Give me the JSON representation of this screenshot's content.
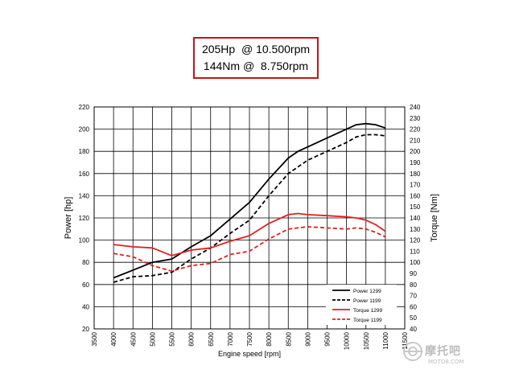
{
  "headline": {
    "power_text": "205Hp  @ 10.500rpm",
    "torque_text": "144Nm @  8.750rpm",
    "border_color": "#c81414"
  },
  "chart_data": {
    "type": "line",
    "title": "",
    "xlabel": "Engine speed [rpm]",
    "ylabel": "Power [hp]",
    "y2label": "Torque [Nm]",
    "xlim": [
      3500,
      11500
    ],
    "ylim": [
      20,
      220
    ],
    "y2lim": [
      40,
      240
    ],
    "x_ticks": [
      3500,
      4000,
      4500,
      5000,
      5500,
      6000,
      6500,
      7000,
      7500,
      8000,
      8500,
      9000,
      9500,
      10000,
      10500,
      11000,
      11500
    ],
    "y_ticks": [
      20,
      40,
      60,
      80,
      100,
      120,
      140,
      160,
      180,
      200,
      220
    ],
    "y2_ticks": [
      40,
      50,
      60,
      70,
      80,
      90,
      100,
      110,
      120,
      130,
      140,
      150,
      160,
      170,
      180,
      190,
      200,
      210,
      220,
      230,
      240
    ],
    "grid": true,
    "legend_position": "bottom-right",
    "series": [
      {
        "name": "Power 1299",
        "axis": "left",
        "color": "#000000",
        "dashed": false,
        "x": [
          4000,
          4500,
          5000,
          5500,
          6000,
          6500,
          7000,
          7500,
          8000,
          8500,
          8750,
          9000,
          9500,
          10000,
          10250,
          10500,
          10750,
          11000
        ],
        "y": [
          66,
          73,
          80,
          83,
          94,
          104,
          119,
          134,
          155,
          174,
          180,
          184,
          192,
          200,
          204,
          205,
          204,
          201
        ]
      },
      {
        "name": "Power 1199",
        "axis": "left",
        "color": "#000000",
        "dashed": true,
        "x": [
          4000,
          4500,
          5000,
          5500,
          6000,
          6500,
          7000,
          7500,
          8000,
          8500,
          9000,
          9500,
          10000,
          10250,
          10500,
          10750,
          11000
        ],
        "y": [
          62,
          67,
          68,
          71,
          83,
          93,
          106,
          118,
          140,
          160,
          172,
          180,
          188,
          193,
          195,
          195,
          194
        ]
      },
      {
        "name": "Torque 1299",
        "axis": "right",
        "color": "#e02020",
        "dashed": false,
        "x": [
          4000,
          4500,
          5000,
          5500,
          6000,
          6500,
          7000,
          7500,
          8000,
          8500,
          8750,
          9000,
          9500,
          10000,
          10250,
          10500,
          10750,
          11000
        ],
        "y": [
          116,
          114,
          113,
          106,
          111,
          113,
          119,
          124,
          135,
          143,
          144,
          143,
          142,
          141,
          140,
          138,
          134,
          128
        ]
      },
      {
        "name": "Torque 1199",
        "axis": "right",
        "color": "#e02020",
        "dashed": true,
        "x": [
          4000,
          4500,
          5000,
          5500,
          6000,
          6500,
          7000,
          7500,
          8000,
          8500,
          9000,
          9500,
          10000,
          10250,
          10500,
          10750,
          11000
        ],
        "y": [
          108,
          105,
          97,
          92,
          97,
          99,
          107,
          110,
          121,
          130,
          132,
          131,
          130,
          131,
          130,
          127,
          123
        ]
      }
    ]
  },
  "watermark": {
    "text": "摩托吧",
    "url": "MOTO8.COM"
  }
}
